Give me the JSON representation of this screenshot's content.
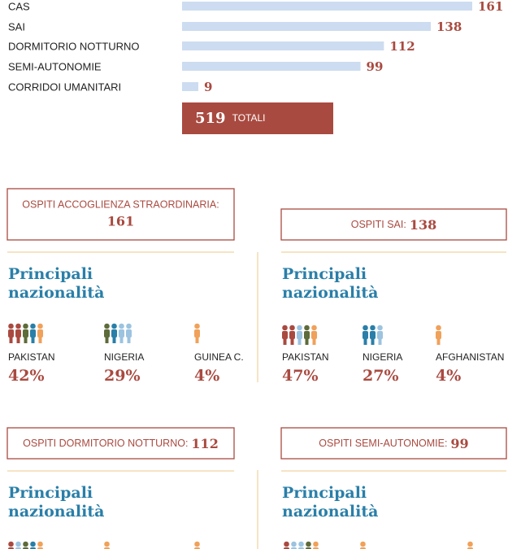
{
  "chart_data": {
    "type": "bar",
    "orientation": "horizontal",
    "categories": [
      "CAS",
      "SAI",
      "DORMITORIO NOTTURNO",
      "SEMI-AUTONOMIE",
      "CORRIDOI UMANITARI"
    ],
    "values": [
      161,
      138,
      112,
      99,
      9
    ],
    "color": "#cddcf0",
    "label_color": "#a94a40"
  },
  "total": {
    "value": 519,
    "label": "TOTALI"
  },
  "panels": [
    {
      "title": "OSPITI ACCOGLIENZA STRAORDINARIA:",
      "count": 161,
      "heading": [
        "Principali",
        "nazionalità"
      ],
      "nationalities": [
        {
          "name": "PAKISTAN",
          "share": "42%"
        },
        {
          "name": "NIGERIA",
          "share": "29%"
        },
        {
          "name": "GUINEA C.",
          "share": "4%"
        }
      ]
    },
    {
      "title": "OSPITI SAI:",
      "count": 138,
      "heading": [
        "Principali",
        "nazionalità"
      ],
      "nationalities": [
        {
          "name": "PAKISTAN",
          "share": "47%"
        },
        {
          "name": "NIGERIA",
          "share": "27%"
        },
        {
          "name": "AFGHANISTAN",
          "share": "4%"
        }
      ]
    },
    {
      "title": "OSPITI DORMITORIO NOTTURNO:",
      "count": 112,
      "heading": [
        "Principali",
        "nazionalità"
      ]
    },
    {
      "title": "OSPITI SEMI-AUTONOMIE:",
      "count": 99,
      "heading": [
        "Principali",
        "nazionalità"
      ]
    }
  ]
}
